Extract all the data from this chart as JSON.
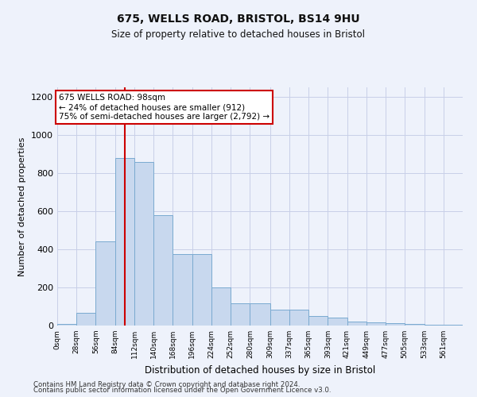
{
  "title1": "675, WELLS ROAD, BRISTOL, BS14 9HU",
  "title2": "Size of property relative to detached houses in Bristol",
  "xlabel": "Distribution of detached houses by size in Bristol",
  "ylabel": "Number of detached properties",
  "bin_labels": [
    "0sqm",
    "28sqm",
    "56sqm",
    "84sqm",
    "112sqm",
    "140sqm",
    "168sqm",
    "196sqm",
    "224sqm",
    "252sqm",
    "280sqm",
    "309sqm",
    "337sqm",
    "365sqm",
    "393sqm",
    "421sqm",
    "449sqm",
    "477sqm",
    "505sqm",
    "533sqm",
    "561sqm"
  ],
  "bin_edges": [
    0,
    28,
    56,
    84,
    112,
    140,
    168,
    196,
    224,
    252,
    280,
    309,
    337,
    365,
    393,
    421,
    449,
    477,
    505,
    533,
    561,
    589
  ],
  "bar_heights": [
    10,
    65,
    440,
    880,
    860,
    580,
    375,
    375,
    200,
    115,
    115,
    85,
    85,
    50,
    40,
    20,
    15,
    12,
    10,
    5,
    5
  ],
  "bar_color": "#c8d8ee",
  "bar_edge_color": "#7aaad0",
  "bg_color": "#eef2fb",
  "grid_color": "#c8cfe8",
  "property_size": 98,
  "vline_color": "#cc0000",
  "annotation_text": "675 WELLS ROAD: 98sqm\n← 24% of detached houses are smaller (912)\n75% of semi-detached houses are larger (2,792) →",
  "annotation_box_color": "#ffffff",
  "annotation_edge_color": "#cc0000",
  "ylim": [
    0,
    1250
  ],
  "yticks": [
    0,
    200,
    400,
    600,
    800,
    1000,
    1200
  ],
  "footer1": "Contains HM Land Registry data © Crown copyright and database right 2024.",
  "footer2": "Contains public sector information licensed under the Open Government Licence v3.0."
}
